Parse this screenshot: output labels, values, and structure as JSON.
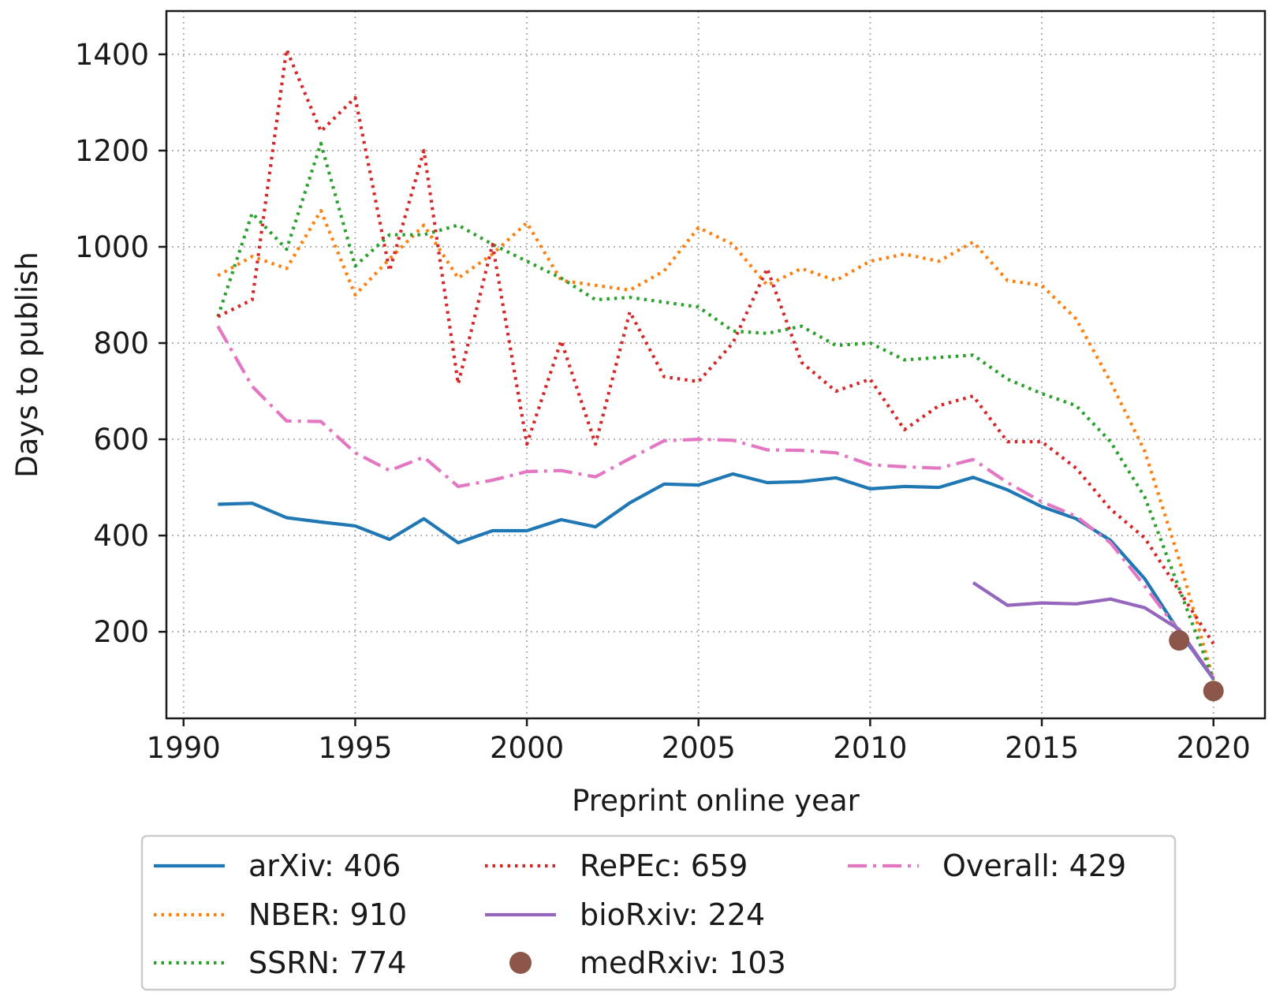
{
  "chart_data": {
    "type": "line",
    "title": "",
    "xlabel": "Preprint online year",
    "ylabel": "Days to publish",
    "xlim": [
      1989.5,
      2021.5
    ],
    "ylim": [
      20,
      1490
    ],
    "xticks": [
      1990,
      1995,
      2000,
      2005,
      2010,
      2015,
      2020
    ],
    "yticks": [
      200,
      400,
      600,
      800,
      1000,
      1200,
      1400
    ],
    "xtick_labels": [
      "1990",
      "1995",
      "2000",
      "2005",
      "2010",
      "2015",
      "2020"
    ],
    "ytick_labels": [
      "200",
      "400",
      "600",
      "800",
      "1000",
      "1200",
      "1400"
    ],
    "grid": true,
    "legend_position": "bottom-outside",
    "series": [
      {
        "name": "arXiv",
        "legend_label": "arXiv: 406",
        "color": "#1f77b4",
        "style": "solid",
        "x": [
          1991,
          1992,
          1993,
          1994,
          1995,
          1996,
          1997,
          1998,
          1999,
          2000,
          2001,
          2002,
          2003,
          2004,
          2005,
          2006,
          2007,
          2008,
          2009,
          2010,
          2011,
          2012,
          2013,
          2014,
          2015,
          2016,
          2017,
          2018,
          2019,
          2020
        ],
        "y": [
          465,
          467,
          437,
          428,
          420,
          392,
          435,
          385,
          410,
          410,
          433,
          418,
          468,
          507,
          505,
          528,
          510,
          512,
          520,
          497,
          502,
          500,
          521,
          495,
          460,
          435,
          390,
          310,
          200,
          102
        ]
      },
      {
        "name": "NBER",
        "legend_label": "NBER: 910",
        "color": "#ff7f0e",
        "style": "dotted",
        "x": [
          1991,
          1992,
          1993,
          1994,
          1995,
          1996,
          1997,
          1998,
          1999,
          2000,
          2001,
          2002,
          2003,
          2004,
          2005,
          2006,
          2007,
          2008,
          2009,
          2010,
          2011,
          2012,
          2013,
          2014,
          2015,
          2016,
          2017,
          2018,
          2019,
          2020
        ],
        "y": [
          940,
          980,
          955,
          1075,
          900,
          975,
          1045,
          935,
          985,
          1050,
          930,
          920,
          910,
          950,
          1040,
          1005,
          920,
          955,
          930,
          970,
          985,
          970,
          1010,
          930,
          920,
          850,
          720,
          575,
          350,
          100
        ]
      },
      {
        "name": "SSRN",
        "legend_label": "SSRN: 774",
        "color": "#2ca02c",
        "style": "dotted",
        "x": [
          1991,
          1992,
          1993,
          1994,
          1995,
          1996,
          1997,
          1998,
          1999,
          2000,
          2001,
          2002,
          2003,
          2004,
          2005,
          2006,
          2007,
          2008,
          2009,
          2010,
          2011,
          2012,
          2013,
          2014,
          2015,
          2016,
          2017,
          2018,
          2019,
          2020
        ],
        "y": [
          855,
          1070,
          995,
          1215,
          960,
          1025,
          1025,
          1045,
          1005,
          970,
          935,
          890,
          895,
          885,
          875,
          825,
          820,
          835,
          795,
          800,
          765,
          770,
          775,
          725,
          695,
          670,
          595,
          480,
          290,
          100
        ]
      },
      {
        "name": "RePEc",
        "legend_label": "RePEc: 659",
        "color": "#d62728",
        "style": "dotted",
        "x": [
          1991,
          1992,
          1993,
          1994,
          1995,
          1996,
          1997,
          1998,
          1999,
          2000,
          2001,
          2002,
          2003,
          2004,
          2005,
          2006,
          2007,
          2008,
          2009,
          2010,
          2011,
          2012,
          2013,
          2014,
          2015,
          2016,
          2017,
          2018,
          2019,
          2020
        ],
        "y": [
          855,
          890,
          1410,
          1240,
          1310,
          950,
          1200,
          715,
          1005,
          590,
          805,
          590,
          865,
          730,
          720,
          800,
          955,
          760,
          700,
          725,
          620,
          670,
          690,
          595,
          595,
          540,
          455,
          395,
          285,
          175
        ]
      },
      {
        "name": "bioRxiv",
        "legend_label": "bioRxiv: 224",
        "color": "#9467bd",
        "style": "solid",
        "x": [
          2013,
          2014,
          2015,
          2016,
          2017,
          2018,
          2019,
          2020
        ],
        "y": [
          302,
          255,
          260,
          258,
          268,
          250,
          205,
          102
        ]
      },
      {
        "name": "medRxiv",
        "legend_label": "medRxiv: 103",
        "color": "#8c564b",
        "style": "markers",
        "x": [
          2019,
          2020
        ],
        "y": [
          182,
          77
        ]
      },
      {
        "name": "Overall",
        "legend_label": "Overall: 429",
        "color": "#e377c2",
        "style": "dashdot",
        "x": [
          1991,
          1992,
          1993,
          1994,
          1995,
          1996,
          1997,
          1998,
          1999,
          2000,
          2001,
          2002,
          2003,
          2004,
          2005,
          2006,
          2007,
          2008,
          2009,
          2010,
          2011,
          2012,
          2013,
          2014,
          2015,
          2016,
          2017,
          2018,
          2019,
          2020
        ],
        "y": [
          835,
          710,
          638,
          637,
          572,
          535,
          563,
          502,
          515,
          533,
          535,
          522,
          560,
          597,
          600,
          598,
          578,
          577,
          572,
          547,
          543,
          540,
          558,
          510,
          470,
          440,
          385,
          295,
          200,
          105
        ]
      }
    ],
    "legend": [
      {
        "label": "arXiv: 406",
        "series": "arXiv"
      },
      {
        "label": "NBER: 910",
        "series": "NBER"
      },
      {
        "label": "SSRN: 774",
        "series": "SSRN"
      },
      {
        "label": "RePEc: 659",
        "series": "RePEc"
      },
      {
        "label": "bioRxiv: 224",
        "series": "bioRxiv"
      },
      {
        "label": "medRxiv: 103",
        "series": "medRxiv"
      },
      {
        "label": "Overall: 429",
        "series": "Overall"
      }
    ]
  }
}
